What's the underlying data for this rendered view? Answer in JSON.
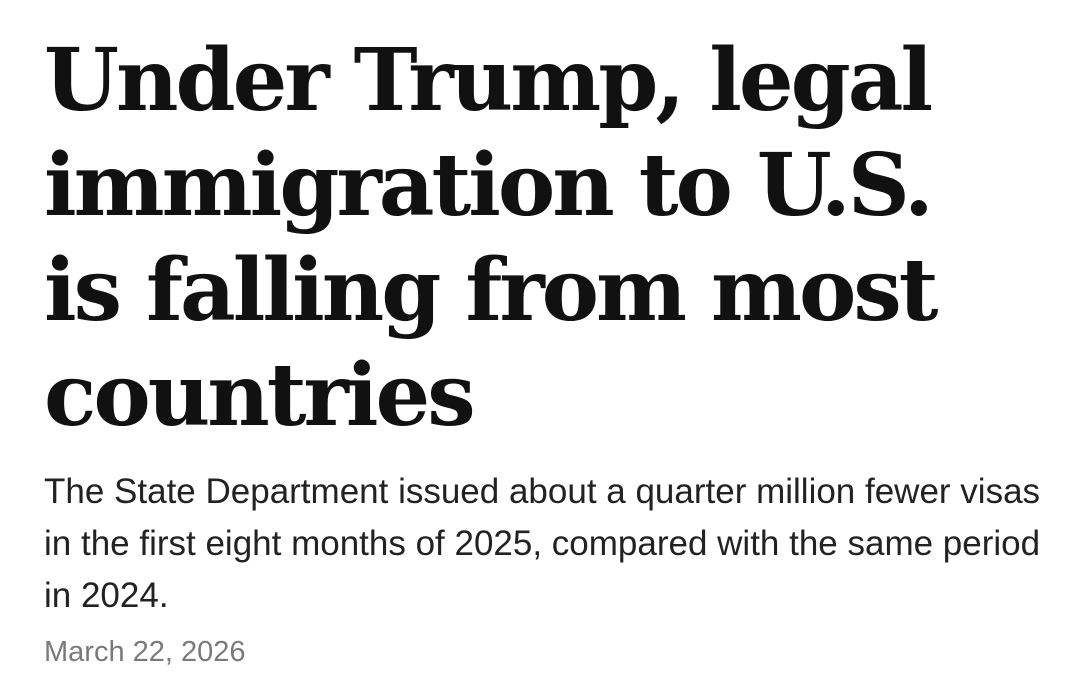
{
  "article": {
    "headline": "Under Trump, legal immigration to U.S. is falling from most countries",
    "dek": "The State Department issued about a quarter million fewer visas in the first eight months of 2025, compared with the same period in 2024.",
    "date": "March 22, 2026"
  }
}
